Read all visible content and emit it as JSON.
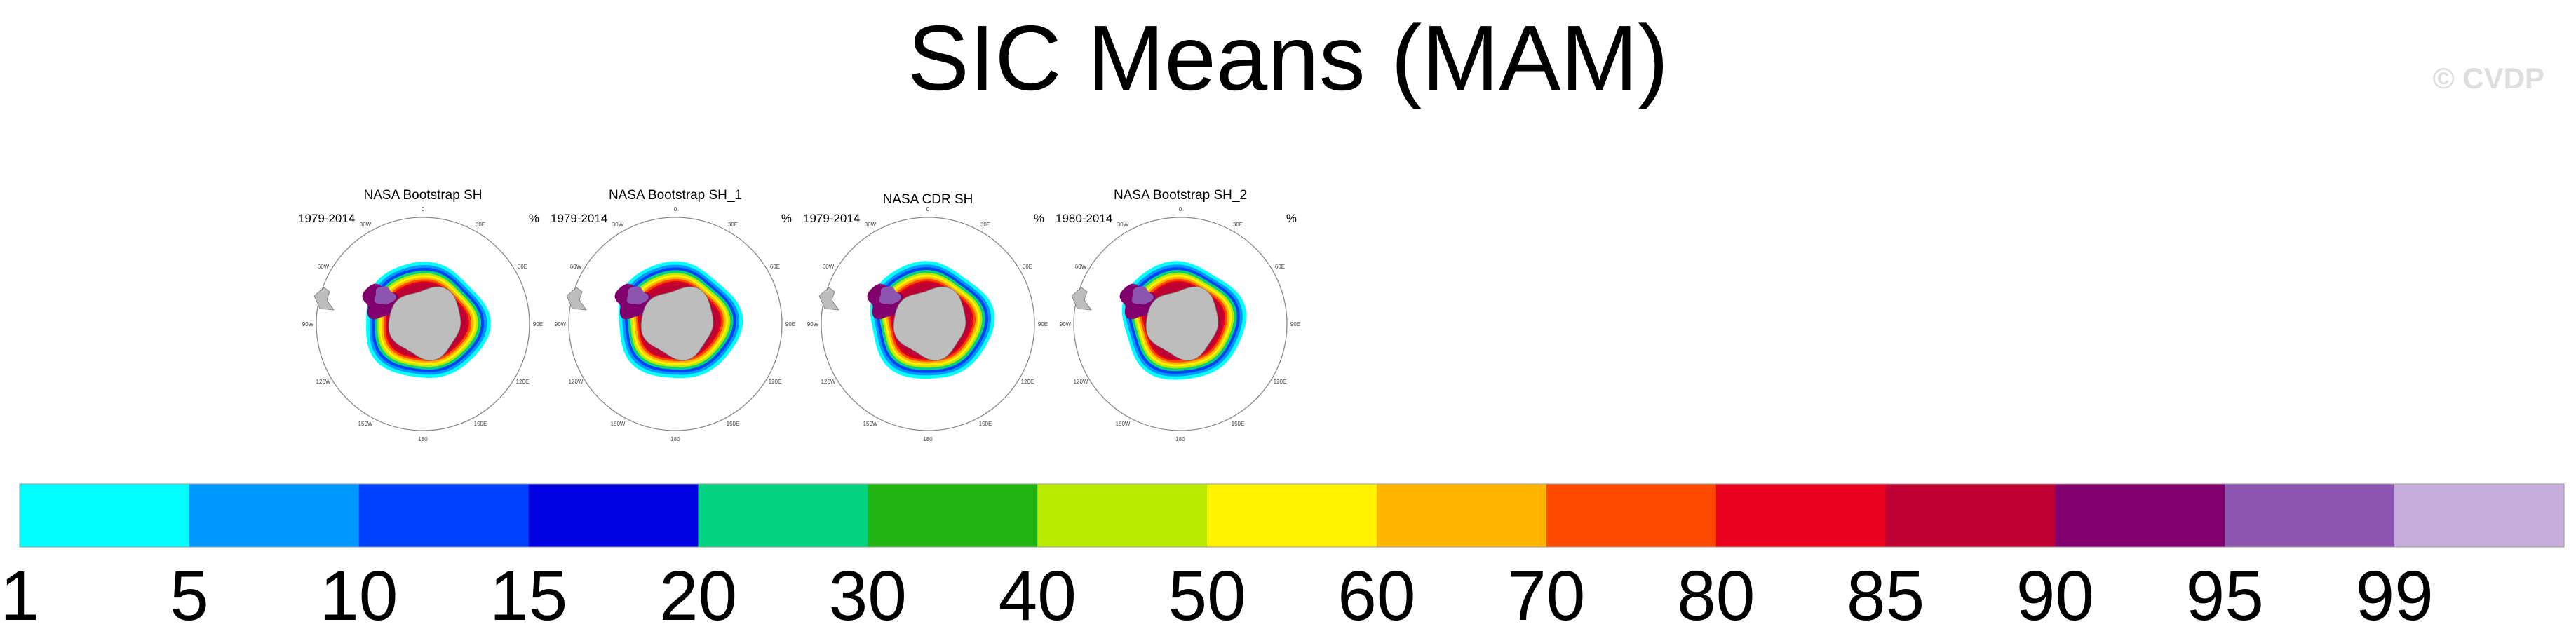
{
  "title": "SIC Means (MAM)",
  "watermark": "© CVDP",
  "chart_data": [
    {
      "type": "map",
      "title": "NASA Bootstrap SH",
      "period": "1979-2014",
      "units": "%",
      "lon_labels": [
        "0",
        "30E",
        "60E",
        "90E",
        "120E",
        "150E",
        "180",
        "150W",
        "120W",
        "90W",
        "60W",
        "30W"
      ]
    },
    {
      "type": "map",
      "title": "NASA Bootstrap SH_1",
      "period": "1979-2014",
      "units": "%",
      "lon_labels": [
        "0",
        "30E",
        "60E",
        "90E",
        "120E",
        "150E",
        "180",
        "150W",
        "120W",
        "90W",
        "60W",
        "30W"
      ]
    },
    {
      "type": "map",
      "title": "NASA CDR SH",
      "period": "1979-2014",
      "units": "%",
      "lon_labels": [
        "0",
        "30E",
        "60E",
        "90E",
        "120E",
        "150E",
        "180",
        "150W",
        "120W",
        "90W",
        "60W",
        "30W"
      ]
    },
    {
      "type": "map",
      "title": "NASA Bootstrap SH_2",
      "period": "1980-2014",
      "units": "%",
      "lon_labels": [
        "0",
        "30E",
        "60E",
        "90E",
        "120E",
        "150E",
        "180",
        "150W",
        "120W",
        "90W",
        "60W",
        "30W"
      ]
    }
  ],
  "colorbar": {
    "labels": [
      "1",
      "5",
      "10",
      "15",
      "20",
      "30",
      "40",
      "50",
      "60",
      "70",
      "80",
      "85",
      "90",
      "95",
      "99"
    ],
    "colors": [
      "#00ffff",
      "#0096ff",
      "#0040ff",
      "#0000e0",
      "#00d27f",
      "#22b412",
      "#b9e900",
      "#fff200",
      "#ffb400",
      "#ff4b00",
      "#e8001c",
      "#bf0033",
      "#82006e",
      "#8c55b0",
      "#c6addb"
    ]
  }
}
